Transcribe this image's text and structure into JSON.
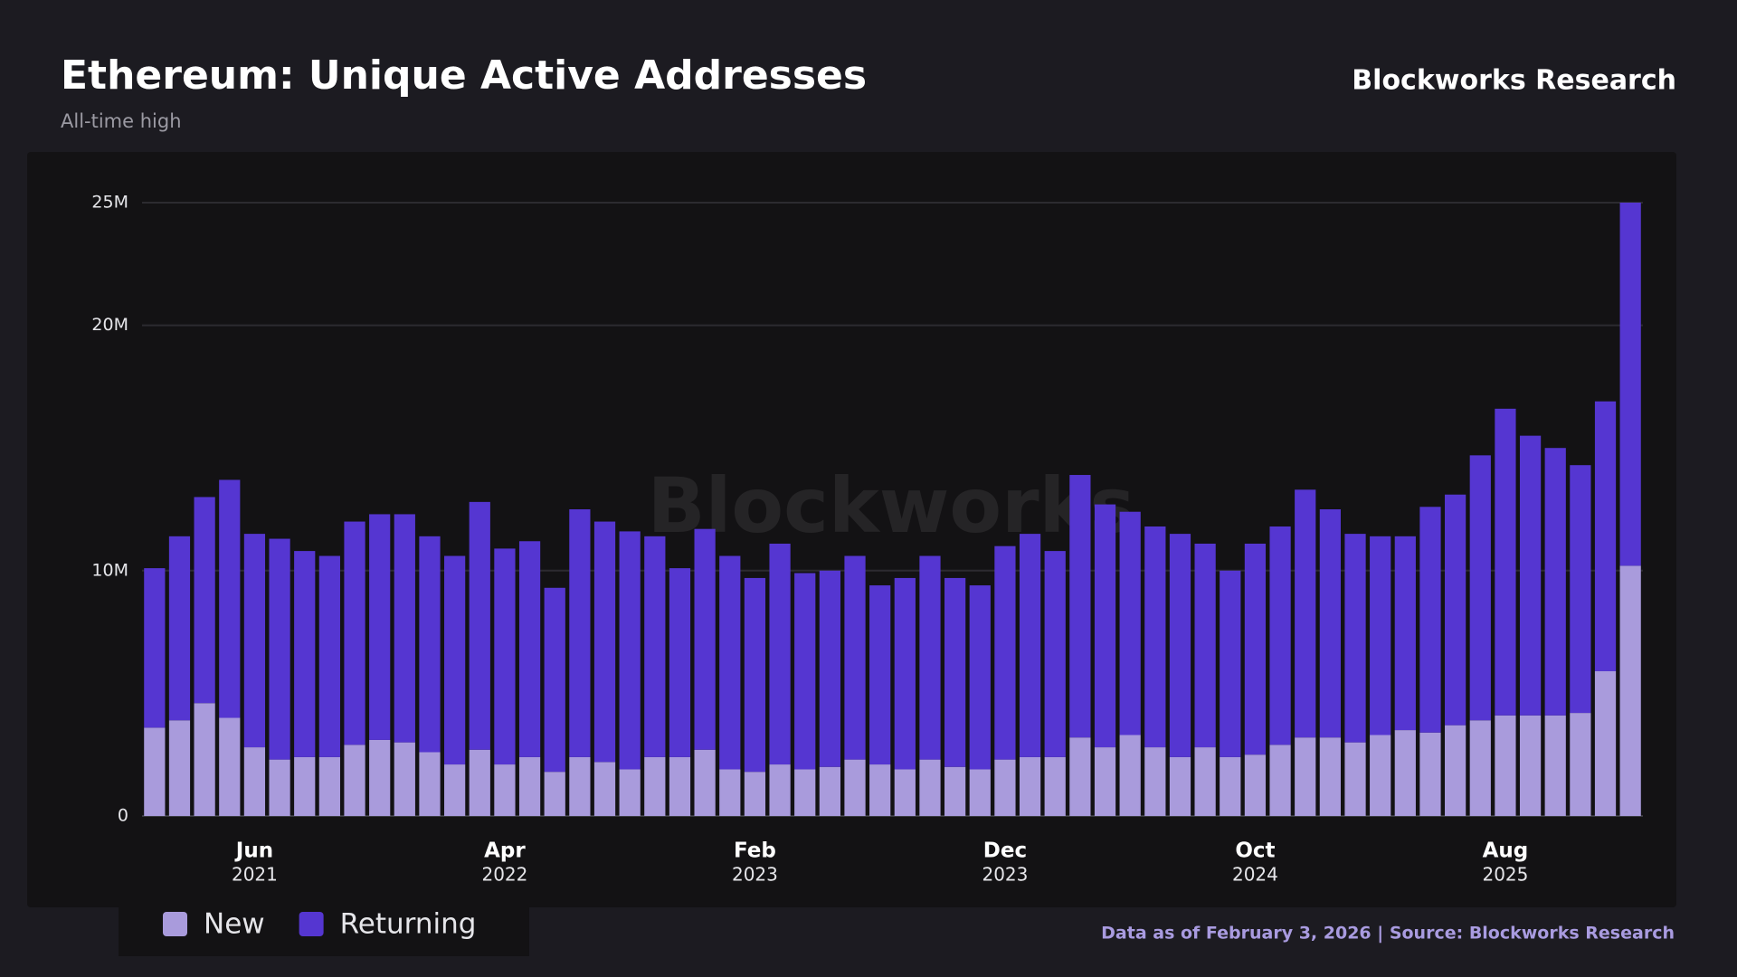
{
  "chart_data": {
    "type": "stacked_bar",
    "title": "Ethereum: Unique Active Addresses",
    "subtitle": "All-time high",
    "brand": "Blockworks Research",
    "watermark": "Blockworks",
    "source": "Data as of February 3, 2026 | Source: Blockworks Research",
    "categories": [
      null,
      null,
      null,
      null,
      "Jun",
      null,
      null,
      null,
      null,
      null,
      null,
      null,
      null,
      null,
      "Apr",
      null,
      null,
      null,
      null,
      null,
      null,
      null,
      null,
      null,
      "Feb",
      null,
      null,
      null,
      null,
      null,
      null,
      null,
      null,
      null,
      "Dec",
      null,
      null,
      null,
      null,
      null,
      null,
      null,
      null,
      null,
      "Oct",
      null,
      null,
      null,
      null,
      null,
      null,
      null,
      null,
      null,
      "Aug",
      null,
      null,
      null,
      null,
      null
    ],
    "category_years": [
      null,
      null,
      null,
      null,
      "2021",
      null,
      null,
      null,
      null,
      null,
      null,
      null,
      null,
      null,
      "2022",
      null,
      null,
      null,
      null,
      null,
      null,
      null,
      null,
      null,
      "2023",
      null,
      null,
      null,
      null,
      null,
      null,
      null,
      null,
      null,
      "2023",
      null,
      null,
      null,
      null,
      null,
      null,
      null,
      null,
      null,
      "2024",
      null,
      null,
      null,
      null,
      null,
      null,
      null,
      null,
      null,
      "2025",
      null,
      null,
      null,
      null,
      null
    ],
    "series": [
      {
        "name": "New",
        "color": "#a99bdc",
        "values": [
          3.6,
          3.9,
          4.6,
          4.0,
          2.8,
          2.3,
          2.4,
          2.4,
          2.9,
          3.1,
          3.0,
          2.6,
          2.1,
          2.7,
          2.1,
          2.4,
          1.8,
          2.4,
          2.2,
          1.9,
          2.4,
          2.4,
          2.7,
          1.9,
          1.8,
          2.1,
          1.9,
          2.0,
          2.3,
          2.1,
          1.9,
          2.3,
          2.0,
          1.9,
          2.3,
          2.4,
          2.4,
          3.2,
          2.8,
          3.3,
          2.8,
          2.4,
          2.8,
          2.4,
          2.5,
          2.9,
          3.2,
          3.2,
          3.0,
          3.3,
          3.5,
          3.4,
          3.7,
          3.9,
          4.1,
          4.1,
          4.1,
          4.2,
          5.9,
          10.2
        ]
      },
      {
        "name": "Returning",
        "color": "#5536d1",
        "values": [
          6.5,
          7.5,
          8.4,
          9.7,
          8.7,
          9.0,
          8.4,
          8.2,
          9.1,
          9.2,
          9.3,
          8.8,
          8.5,
          10.1,
          8.8,
          8.8,
          7.5,
          10.1,
          9.8,
          9.7,
          9.0,
          7.7,
          9.0,
          8.7,
          7.9,
          9.0,
          8.0,
          8.0,
          8.3,
          7.3,
          7.8,
          8.3,
          7.7,
          7.5,
          8.7,
          9.1,
          8.4,
          10.7,
          9.9,
          9.1,
          9.0,
          9.1,
          8.3,
          7.6,
          8.6,
          8.9,
          10.1,
          9.3,
          8.5,
          8.1,
          7.9,
          9.2,
          9.4,
          10.8,
          12.5,
          11.4,
          10.9,
          10.1,
          11.0,
          14.8
        ]
      }
    ],
    "ylim": [
      0,
      25
    ],
    "yticks": [
      {
        "value": 0,
        "label": "0"
      },
      {
        "value": 10,
        "label": "10M"
      },
      {
        "value": 20,
        "label": "20M"
      },
      {
        "value": 25,
        "label": "25M"
      }
    ],
    "grid": true
  }
}
